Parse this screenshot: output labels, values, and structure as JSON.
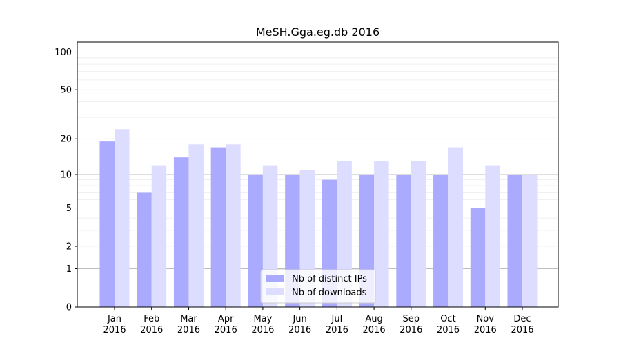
{
  "chart_data": {
    "type": "bar",
    "title": "MeSH.Gga.eg.db 2016",
    "xlabel": "",
    "ylabel": "",
    "yscale": "log1p",
    "ylim": [
      0,
      120
    ],
    "yticks": [
      0,
      1,
      2,
      5,
      10,
      20,
      50,
      100
    ],
    "grid": true,
    "legend_position": "bottom-center",
    "categories": [
      [
        "Jan",
        "2016"
      ],
      [
        "Feb",
        "2016"
      ],
      [
        "Mar",
        "2016"
      ],
      [
        "Apr",
        "2016"
      ],
      [
        "May",
        "2016"
      ],
      [
        "Jun",
        "2016"
      ],
      [
        "Jul",
        "2016"
      ],
      [
        "Aug",
        "2016"
      ],
      [
        "Sep",
        "2016"
      ],
      [
        "Oct",
        "2016"
      ],
      [
        "Nov",
        "2016"
      ],
      [
        "Dec",
        "2016"
      ]
    ],
    "series": [
      {
        "name": "Nb of distinct IPs",
        "color": "#aaaaff",
        "values": [
          19,
          7,
          14,
          17,
          10,
          10,
          9,
          10,
          10,
          10,
          5,
          10
        ]
      },
      {
        "name": "Nb of downloads",
        "color": "#ddddff",
        "values": [
          24,
          12,
          18,
          18,
          12,
          11,
          13,
          13,
          13,
          17,
          12,
          10
        ]
      }
    ]
  }
}
